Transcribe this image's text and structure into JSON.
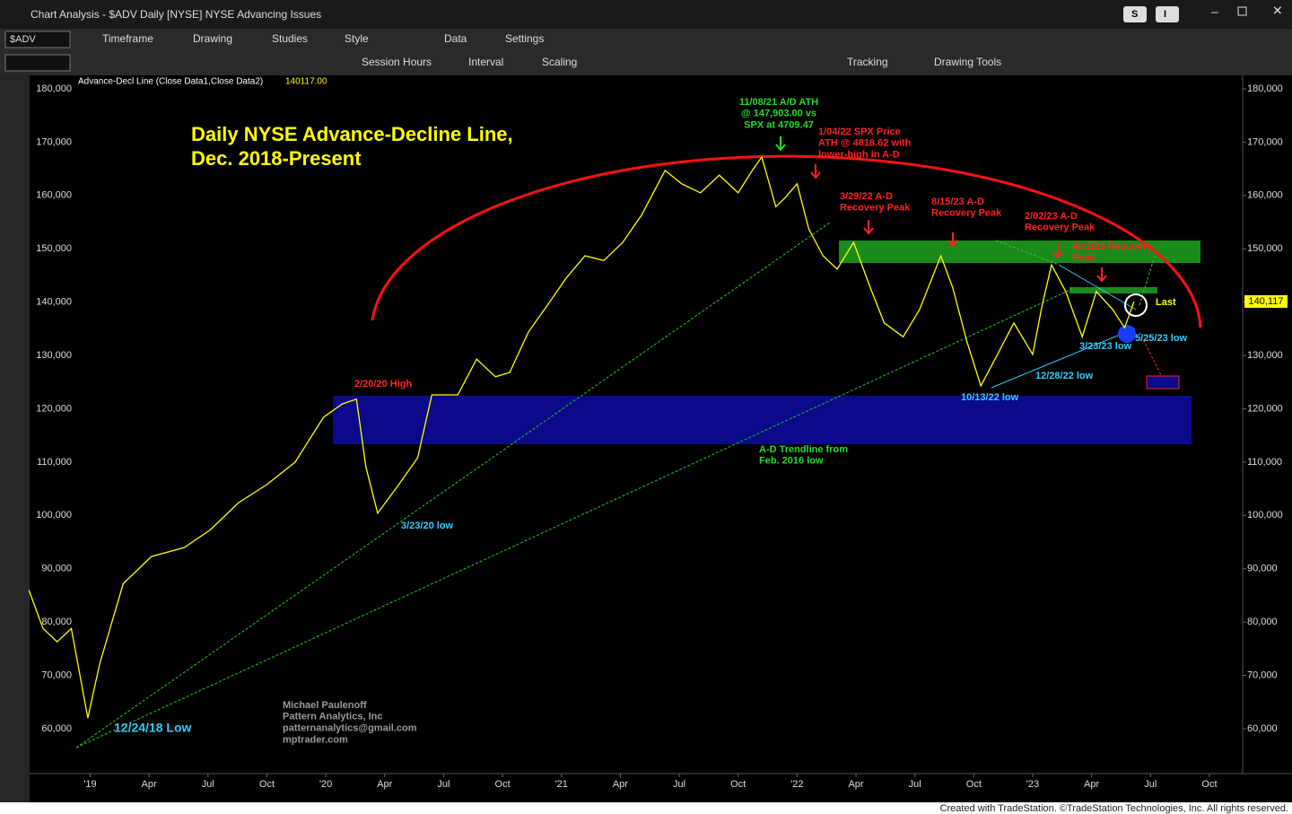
{
  "window": {
    "title": "Chart Analysis - $ADV Daily [NYSE] NYSE Advancing Issues",
    "buttons": [
      "S",
      "I"
    ]
  },
  "toolbar": {
    "symbol": "$ADV",
    "row1": [
      "Timeframe",
      "Drawing",
      "Studies",
      "Style",
      "Data",
      "Settings"
    ],
    "row2": [
      "Session Hours",
      "Interval",
      "Scaling",
      "Tracking",
      "Drawing Tools"
    ]
  },
  "footer": "Created with TradeStation. ©TradeStation Technologies, Inc. All rights reserved.",
  "chart_data": {
    "type": "line",
    "title": "Daily NYSE Advance-Decline Line, Dec. 2018-Present",
    "legend": "Advance-Decl Line (Close Data1,Close Data2)",
    "legend_value": "140117.00",
    "color": "#ffff00",
    "x": [
      2018.74,
      2018.8,
      2018.86,
      2018.92,
      2018.99,
      2019.04,
      2019.14,
      2019.26,
      2019.4,
      2019.51,
      2019.63,
      2019.75,
      2019.87,
      2019.99,
      2020.07,
      2020.13,
      2020.17,
      2020.22,
      2020.31,
      2020.39,
      2020.45,
      2020.56,
      2020.64,
      2020.72,
      2020.78,
      2020.86,
      2020.94,
      2021.02,
      2021.1,
      2021.18,
      2021.26,
      2021.34,
      2021.44,
      2021.51,
      2021.59,
      2021.67,
      2021.75,
      2021.81,
      2021.85,
      2021.91,
      2021.95,
      2022.0,
      2022.05,
      2022.11,
      2022.17,
      2022.24,
      2022.31,
      2022.37,
      2022.45,
      2022.52,
      2022.61,
      2022.66,
      2022.72,
      2022.78,
      2022.84,
      2022.92,
      2023.0,
      2023.04,
      2023.08,
      2023.14,
      2023.21,
      2023.27,
      2023.34,
      2023.39,
      2023.43
    ],
    "values": [
      86000,
      78800,
      76300,
      78800,
      62000,
      72100,
      87200,
      92300,
      94000,
      97300,
      102400,
      105800,
      110000,
      118400,
      120900,
      121800,
      109100,
      100400,
      105800,
      110800,
      122600,
      122600,
      129300,
      126000,
      126800,
      134400,
      139400,
      144500,
      148700,
      147800,
      151200,
      156300,
      164700,
      162200,
      160500,
      163800,
      160500,
      164700,
      167200,
      157900,
      159600,
      162200,
      153700,
      148700,
      146200,
      151200,
      142800,
      136100,
      133500,
      138600,
      148700,
      142800,
      132700,
      124300,
      129300,
      136100,
      130200,
      139400,
      147000,
      142000,
      133500,
      142000,
      138600,
      135200,
      140117
    ],
    "last": {
      "value": 140117,
      "label": "140,117"
    },
    "xlim": [
      2018.743,
      2023.891
    ],
    "xticks": [
      {
        "value": 2019,
        "label": "'19"
      },
      {
        "value": 2019.25,
        "label": "Apr"
      },
      {
        "value": 2019.5,
        "label": "Jul"
      },
      {
        "value": 2019.75,
        "label": "Oct"
      },
      {
        "value": 2020,
        "label": "'20"
      },
      {
        "value": 2020.25,
        "label": "Apr"
      },
      {
        "value": 2020.5,
        "label": "Jul"
      },
      {
        "value": 2020.75,
        "label": "Oct"
      },
      {
        "value": 2021,
        "label": "'21"
      },
      {
        "value": 2021.25,
        "label": "Apr"
      },
      {
        "value": 2021.5,
        "label": "Jul"
      },
      {
        "value": 2021.75,
        "label": "Oct"
      },
      {
        "value": 2022,
        "label": "'22"
      },
      {
        "value": 2022.25,
        "label": "Apr"
      },
      {
        "value": 2022.5,
        "label": "Jul"
      },
      {
        "value": 2022.75,
        "label": "Oct"
      },
      {
        "value": 2023,
        "label": "'23"
      },
      {
        "value": 2023.25,
        "label": "Apr"
      },
      {
        "value": 2023.5,
        "label": "Jul"
      },
      {
        "value": 2023.75,
        "label": "Oct"
      }
    ],
    "ylim": [
      51580,
      181850
    ],
    "yticks": [
      {
        "value": 60000,
        "label": "60,000"
      },
      {
        "value": 70000,
        "label": "70,000"
      },
      {
        "value": 80000,
        "label": "80,000"
      },
      {
        "value": 90000,
        "label": "90,000"
      },
      {
        "value": 100000,
        "label": "100,000"
      },
      {
        "value": 110000,
        "label": "110,000"
      },
      {
        "value": 120000,
        "label": "120,000"
      },
      {
        "value": 130000,
        "label": "130,000"
      },
      {
        "value": 140000,
        "label": "140,000"
      },
      {
        "value": 150000,
        "label": "150,000"
      },
      {
        "value": 160000,
        "label": "160,000"
      },
      {
        "value": 170000,
        "label": "170,000"
      },
      {
        "value": 180000,
        "label": "180,000"
      }
    ],
    "annotations": [
      {
        "lines": [
          "11/08/21 A/D ATH",
          "@ 147,903.00 vs",
          "SPX at 4709.47"
        ],
        "color": "#22dd22"
      },
      {
        "lines": [
          "1/04/22 SPX Price",
          "ATH @ 4818.62 with",
          "lower-high in A-D"
        ],
        "color": "#ff2222"
      },
      {
        "lines": [
          "3/29/22 A-D",
          "Recovery Peak"
        ],
        "color": "#ff2222"
      },
      {
        "lines": [
          "8/15/23 A-D",
          "Recovery Peak"
        ],
        "color": "#ff2222"
      },
      {
        "lines": [
          "2/02/23 A-D",
          "Recovery Peak"
        ],
        "color": "#ff2222"
      },
      {
        "lines": [
          "4/13/23 Recovery",
          "Peak"
        ],
        "color": "#ff2222"
      },
      {
        "lines": [
          "2/20/20 High"
        ],
        "color": "#ff2222"
      },
      {
        "lines": [
          "3/23/20 low"
        ],
        "color": "#33ccff"
      },
      {
        "lines": [
          "12/24/18 Low"
        ],
        "color": "#33ccff"
      },
      {
        "lines": [
          "10/13/22 low"
        ],
        "color": "#33ccff"
      },
      {
        "lines": [
          "12/28/22 low"
        ],
        "color": "#33ccff"
      },
      {
        "lines": [
          "3/23/23 low"
        ],
        "color": "#33ccff"
      },
      {
        "lines": [
          "5/25/23 low"
        ],
        "color": "#33ccff"
      },
      {
        "lines": [
          "Last"
        ],
        "color": "#ffff00"
      },
      {
        "lines": [
          "A-D Trendline from",
          "Feb. 2016 low"
        ],
        "color": "#22dd22"
      },
      {
        "lines": [
          "Michael Paulenoff",
          "Pattern Analytics, Inc",
          "patternanalytics@gmail.com",
          "mptrader.com"
        ],
        "color": "#9a9a9a"
      }
    ]
  }
}
